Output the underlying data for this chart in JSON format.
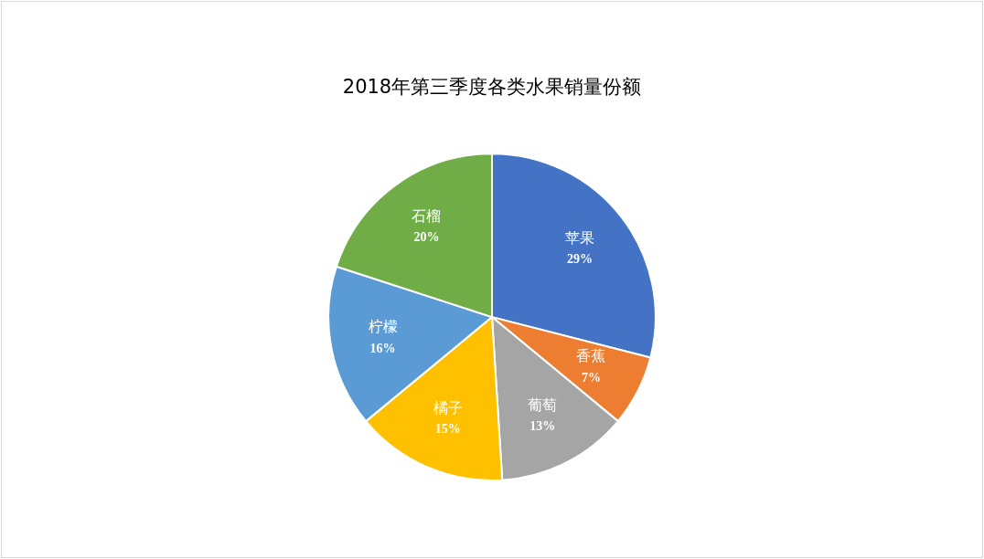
{
  "chart_data": {
    "type": "pie",
    "title": "2018年第三季度各类水果销量份额",
    "categories": [
      "苹果",
      "香蕉",
      "葡萄",
      "橘子",
      "柠檬",
      "石榴"
    ],
    "values": [
      29,
      7,
      13,
      15,
      16,
      20
    ],
    "value_labels": [
      "29%",
      "7%",
      "13%",
      "15%",
      "16%",
      "20%"
    ],
    "colors": [
      "#4472c4",
      "#ed7d31",
      "#a5a5a5",
      "#ffc000",
      "#5b9bd5",
      "#70ad47"
    ],
    "legend": false
  }
}
